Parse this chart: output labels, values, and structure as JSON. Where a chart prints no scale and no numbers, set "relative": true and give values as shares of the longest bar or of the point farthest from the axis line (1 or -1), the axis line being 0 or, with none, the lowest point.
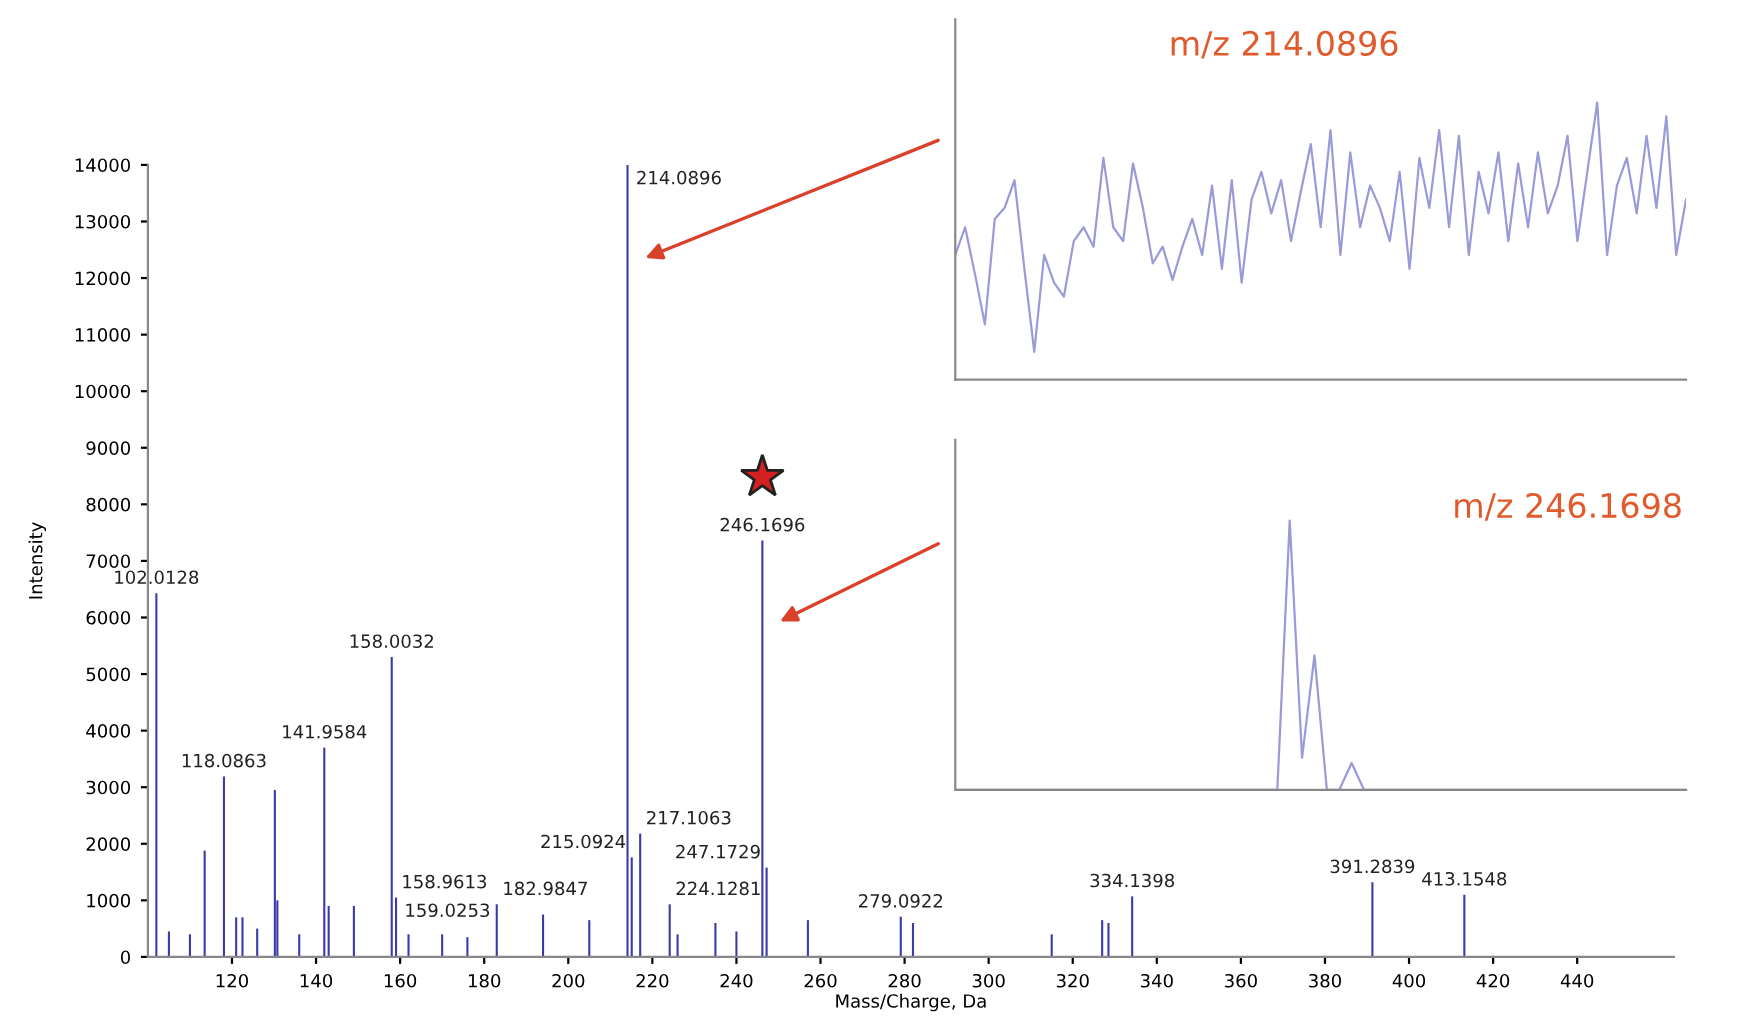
{
  "chart_data": [
    {
      "type": "bar",
      "xlabel": "Mass/Charge, Da",
      "ylabel": "Intensity",
      "color": "#3a3aa8",
      "x": [
        102.0128,
        105,
        110,
        113.5,
        118.0863,
        121,
        122.5,
        126,
        130.2,
        130.8,
        136,
        141.9584,
        143,
        149,
        158.0032,
        159.0253,
        162,
        170,
        176,
        182.9847,
        194,
        205,
        214.0896,
        215.0924,
        217.1063,
        224.1281,
        226,
        235,
        240,
        246.1696,
        247.1729,
        257,
        279.0922,
        282,
        315,
        327,
        328.5,
        334.1398,
        391.2839,
        413.1548
      ],
      "values": [
        6430,
        450,
        400,
        1880,
        3190,
        700,
        700,
        500,
        2950,
        1000,
        400,
        3700,
        900,
        900,
        5300,
        1050,
        400,
        400,
        350,
        930,
        750,
        650,
        14000,
        1760,
        2180,
        930,
        400,
        600,
        450,
        7360,
        1580,
        650,
        710,
        600,
        400,
        650,
        600,
        1070,
        1320,
        1100
      ],
      "annotations": [
        {
          "text": "102.0128",
          "x": 102.0128,
          "y": 6430
        },
        {
          "text": "118.0863",
          "x": 118.0863,
          "y": 3190
        },
        {
          "text": "141.9584",
          "x": 141.9584,
          "y": 3700
        },
        {
          "text": "158.0032",
          "x": 158.0032,
          "y": 5300
        },
        {
          "text": "158.9613",
          "x": 158.9613,
          "y": 1050
        },
        {
          "text": "159.0253",
          "x": 159.0253,
          "y": 1050
        },
        {
          "text": "182.9847",
          "x": 182.9847,
          "y": 930
        },
        {
          "text": "214.0896",
          "x": 214.0896,
          "y": 14000
        },
        {
          "text": "215.0924",
          "x": 215.0924,
          "y": 1760
        },
        {
          "text": "217.1063",
          "x": 217.1063,
          "y": 2180
        },
        {
          "text": "224.1281",
          "x": 224.1281,
          "y": 930
        },
        {
          "text": "246.1696",
          "x": 246.1696,
          "y": 7360
        },
        {
          "text": "247.1729",
          "x": 247.1729,
          "y": 1580
        },
        {
          "text": "279.0922",
          "x": 279.0922,
          "y": 710
        },
        {
          "text": "334.1398",
          "x": 334.1398,
          "y": 1070
        },
        {
          "text": "391.2839",
          "x": 391.2839,
          "y": 1320
        },
        {
          "text": "413.1548",
          "x": 413.1548,
          "y": 1100
        }
      ],
      "xlim": [
        100,
        463
      ],
      "xticks": [
        120,
        140,
        160,
        180,
        200,
        220,
        240,
        260,
        280,
        300,
        320,
        340,
        360,
        380,
        400,
        420,
        440
      ],
      "ylim": [
        0,
        14000
      ],
      "yticks": [
        0,
        1000,
        2000,
        3000,
        4000,
        5000,
        6000,
        7000,
        8000,
        9000,
        10000,
        11000,
        12000,
        13000,
        14000
      ]
    },
    {
      "type": "line",
      "title": "m/z 214.0896",
      "relative": true,
      "tick_labels": false,
      "color": "#9a9ad8",
      "categories": [
        null,
        null,
        null,
        null,
        null,
        null,
        null,
        null,
        null,
        null,
        null,
        null,
        null,
        null,
        null,
        null,
        null,
        null,
        null,
        null,
        null,
        null,
        null,
        null,
        null,
        null,
        null,
        null,
        null,
        null,
        null,
        null,
        null,
        null,
        null,
        null,
        null,
        null,
        null,
        null,
        null,
        null,
        null,
        null,
        null,
        null,
        null,
        null,
        null,
        null,
        null,
        null,
        null,
        null,
        null,
        null,
        null,
        null,
        null,
        null,
        null,
        null,
        null,
        null,
        null,
        null,
        null,
        null,
        null,
        null,
        null,
        null,
        null,
        null,
        null
      ],
      "values": [
        0.45,
        0.55,
        0.38,
        0.2,
        0.58,
        0.62,
        0.72,
        0.4,
        0.1,
        0.45,
        0.35,
        0.3,
        0.5,
        0.55,
        0.48,
        0.8,
        0.55,
        0.5,
        0.78,
        0.62,
        0.42,
        0.48,
        0.36,
        0.48,
        0.58,
        0.45,
        0.7,
        0.4,
        0.72,
        0.35,
        0.65,
        0.75,
        0.6,
        0.72,
        0.5,
        0.68,
        0.85,
        0.55,
        0.9,
        0.45,
        0.82,
        0.55,
        0.7,
        0.62,
        0.5,
        0.75,
        0.4,
        0.8,
        0.62,
        0.9,
        0.55,
        0.88,
        0.45,
        0.75,
        0.6,
        0.82,
        0.5,
        0.78,
        0.55,
        0.82,
        0.6,
        0.7,
        0.88,
        0.5,
        0.75,
        1.0,
        0.45,
        0.7,
        0.8,
        0.6,
        0.88,
        0.62,
        0.95,
        0.45,
        0.65
      ]
    },
    {
      "type": "line",
      "title": "m/z 246.1698",
      "relative": true,
      "tick_labels": false,
      "color": "#9a9ad8",
      "categories": [
        null,
        null,
        null,
        null,
        null,
        null,
        null,
        null,
        null,
        null,
        null,
        null,
        null,
        null,
        null,
        null,
        null,
        null,
        null,
        null,
        null,
        null,
        null,
        null,
        null,
        null,
        null,
        null,
        null,
        null,
        null,
        null,
        null,
        null,
        null,
        null,
        null,
        null,
        null,
        null,
        null,
        null,
        null,
        null,
        null,
        null,
        null,
        null,
        null,
        null,
        null,
        null,
        null,
        null,
        null,
        null,
        null,
        null,
        null,
        null
      ],
      "values": [
        0,
        0,
        0,
        0,
        0,
        0,
        0,
        0,
        0,
        0,
        0,
        0,
        0,
        0,
        0,
        0,
        0,
        0,
        0,
        0,
        0,
        0,
        0,
        0,
        0,
        0,
        0,
        1.0,
        0.12,
        0.5,
        0,
        0,
        0.1,
        0,
        0,
        0,
        0,
        0,
        0,
        0,
        0,
        0,
        0,
        0,
        0,
        0,
        0,
        0,
        0,
        0,
        0,
        0,
        0,
        0,
        0,
        0,
        0,
        0,
        0,
        0
      ]
    }
  ]
}
